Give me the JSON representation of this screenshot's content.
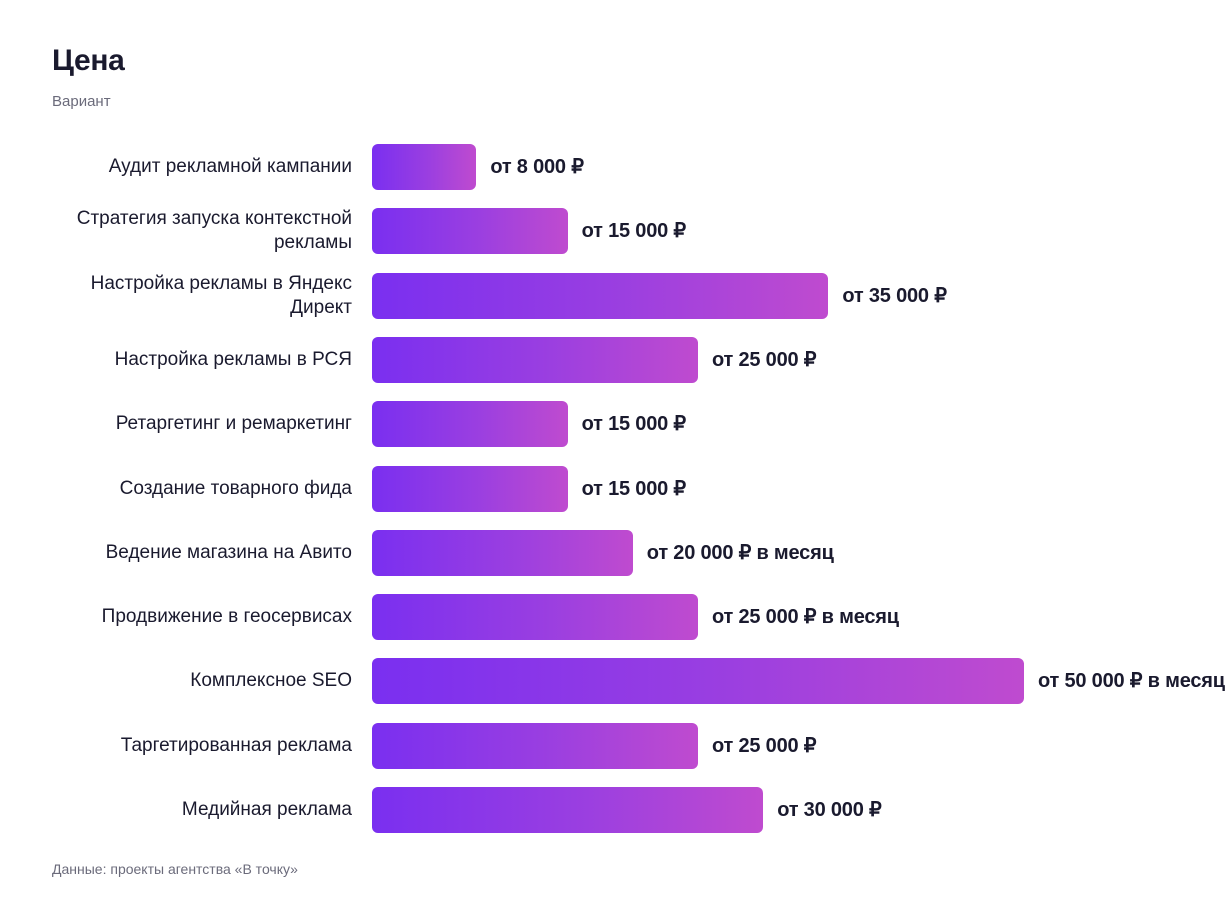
{
  "header": {
    "title": "Цена",
    "subtitle": "Вариант"
  },
  "footer": {
    "source": "Данные: проекты агентства «В точку»"
  },
  "colors": {
    "bar_start": "#7a2ff0",
    "bar_end": "#bf4bcf",
    "text": "#1a1a2e",
    "muted": "#6b6b7b"
  },
  "chart_data": {
    "type": "bar",
    "orientation": "horizontal",
    "title": "Цена",
    "subtitle": "Вариант",
    "categories": [
      "Аудит рекламной кампании",
      "Стратегия запуска контекстной рекламы",
      "Настройка рекламы в Яндекс Директ",
      "Настройка рекламы в РСЯ",
      "Ретаргетинг и ремаркетинг",
      "Создание товарного фида",
      "Ведение магазина на Авито",
      "Продвижение в геосервисах",
      "Комплексное SEO",
      "Таргетированная реклама",
      "Медийная реклама"
    ],
    "values": [
      8000,
      15000,
      35000,
      25000,
      15000,
      15000,
      20000,
      25000,
      50000,
      25000,
      30000
    ],
    "value_labels": [
      "от 8 000 ₽",
      "от 15 000 ₽",
      "от 35 000 ₽",
      "от 25 000 ₽",
      "от 15 000 ₽",
      "от 15 000 ₽",
      "от 20 000 ₽ в месяц",
      "от 25 000 ₽ в месяц",
      "от 50 000 ₽ в месяц",
      "от 25 000 ₽",
      "от 30 000 ₽"
    ],
    "xlim": [
      0,
      50000
    ],
    "grid": false,
    "legend": "none",
    "source": "Данные: проекты агентства «В точку»"
  }
}
